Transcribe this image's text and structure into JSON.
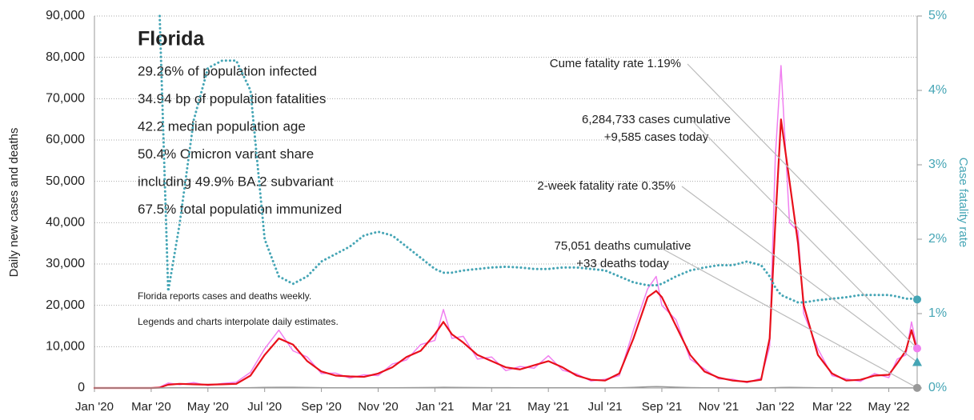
{
  "chart_data": {
    "type": "line",
    "title": "Florida",
    "info_lines": [
      "29.26% of population infected",
      "34.94 bp of population fatalities",
      "42.2 median population age",
      "50.4% Omicron variant share",
      "including 49.9% BA.2 subvariant",
      "67.5% total population immunized"
    ],
    "notes": [
      "Florida reports cases and deaths weekly.",
      "Legends and charts interpolate daily estimates."
    ],
    "y_label": "Daily new cases and deaths",
    "y2_label": "Case fatality rate",
    "x": [
      0,
      1,
      2,
      2.3,
      2.6,
      3,
      3.5,
      4,
      4.5,
      5,
      5.5,
      6,
      6.5,
      7,
      7.5,
      8,
      8.5,
      9,
      9.5,
      10,
      10.5,
      11,
      11.5,
      12,
      12.3,
      12.6,
      13,
      13.5,
      14,
      14.5,
      15,
      15.5,
      16,
      16.5,
      17,
      17.5,
      18,
      18.5,
      19,
      19.5,
      19.8,
      20,
      20.5,
      21,
      21.5,
      22,
      22.5,
      23,
      23.5,
      23.8,
      24,
      24.2,
      24.5,
      24.8,
      25,
      25.5,
      26,
      26.5,
      27,
      27.5,
      28,
      28.3,
      28.6,
      28.8,
      29
    ],
    "series": [
      {
        "color": "#f07ff0",
        "width": 1.5,
        "values": [
          0,
          0,
          0,
          200,
          1200,
          800,
          1300,
          600,
          1100,
          1400,
          3800,
          9500,
          14000,
          9000,
          7500,
          3500,
          3600,
          2400,
          3200,
          3000,
          5800,
          6800,
          10500,
          11500,
          19000,
          12000,
          12500,
          7000,
          7500,
          4200,
          5200,
          4800,
          7800,
          4300,
          3400,
          1700,
          2100,
          3000,
          14000,
          24000,
          27000,
          20000,
          16500,
          7000,
          4600,
          2200,
          2100,
          1300,
          2400,
          10000,
          56000,
          78000,
          40000,
          38000,
          18000,
          9500,
          3000,
          2200,
          1600,
          3500,
          2500,
          7000,
          8000,
          16000,
          9585
        ]
      },
      {
        "color": "#e8101a",
        "width": 2.2,
        "values": [
          0,
          0,
          0,
          100,
          800,
          1000,
          900,
          800,
          900,
          1000,
          3000,
          8000,
          12000,
          10500,
          6500,
          4000,
          3000,
          2800,
          2700,
          3500,
          5000,
          7500,
          9000,
          13000,
          16000,
          13000,
          11000,
          8000,
          6500,
          5000,
          4500,
          5500,
          6500,
          5000,
          3000,
          2000,
          1800,
          3500,
          12000,
          22000,
          23500,
          22000,
          15000,
          8000,
          4000,
          2500,
          1800,
          1500,
          2000,
          12000,
          40000,
          65000,
          50000,
          35000,
          20000,
          8000,
          3500,
          1800,
          2000,
          3000,
          3200,
          6000,
          9000,
          14000,
          9000
        ]
      },
      {
        "color": "#999999",
        "width": 1.5,
        "values": [
          0,
          0,
          0,
          10,
          50,
          60,
          50,
          40,
          40,
          50,
          80,
          150,
          180,
          160,
          120,
          80,
          60,
          50,
          50,
          50,
          60,
          80,
          100,
          130,
          170,
          150,
          130,
          100,
          80,
          70,
          60,
          60,
          60,
          50,
          40,
          30,
          30,
          50,
          150,
          300,
          350,
          320,
          200,
          100,
          60,
          40,
          30,
          25,
          30,
          40,
          80,
          120,
          150,
          130,
          100,
          60,
          40,
          25,
          20,
          15,
          15,
          20,
          25,
          30,
          33
        ]
      },
      {
        "color": "#45a5b5",
        "width": 3,
        "dotted": true,
        "axis": "y2",
        "values": [
          null,
          null,
          null,
          5,
          1.3,
          2.2,
          3.6,
          4.3,
          4.4,
          4.4,
          4.0,
          2.0,
          1.5,
          1.4,
          1.5,
          1.7,
          1.8,
          1.9,
          2.05,
          2.1,
          2.05,
          1.9,
          1.75,
          1.6,
          1.55,
          1.55,
          1.58,
          1.6,
          1.62,
          1.63,
          1.62,
          1.6,
          1.6,
          1.62,
          1.62,
          1.6,
          1.58,
          1.5,
          1.42,
          1.38,
          1.38,
          1.4,
          1.5,
          1.58,
          1.62,
          1.65,
          1.65,
          1.7,
          1.65,
          1.5,
          1.35,
          1.25,
          1.2,
          1.15,
          1.15,
          1.18,
          1.2,
          1.22,
          1.25,
          1.25,
          1.25,
          1.23,
          1.2,
          1.2,
          1.19
        ]
      }
    ],
    "xlim": [
      0,
      29
    ],
    "xticks": [
      {
        "value": 0,
        "label": "Jan '20"
      },
      {
        "value": 2,
        "label": "Mar '20"
      },
      {
        "value": 4,
        "label": "May '20"
      },
      {
        "value": 6,
        "label": "Jul '20"
      },
      {
        "value": 8,
        "label": "Sep '20"
      },
      {
        "value": 10,
        "label": "Nov '20"
      },
      {
        "value": 12,
        "label": "Jan '21"
      },
      {
        "value": 14,
        "label": "Mar '21"
      },
      {
        "value": 16,
        "label": "May '21"
      },
      {
        "value": 18,
        "label": "Jul '21"
      },
      {
        "value": 20,
        "label": "Sep '21"
      },
      {
        "value": 22,
        "label": "Nov '21"
      },
      {
        "value": 24,
        "label": "Jan '22"
      },
      {
        "value": 26,
        "label": "Mar '22"
      },
      {
        "value": 28,
        "label": "May '22"
      }
    ],
    "ylim": [
      0,
      90000
    ],
    "yticks": [
      0,
      {
        "value": 10000,
        "label": "10,000"
      },
      {
        "value": 20000,
        "label": "20,000"
      },
      {
        "value": 30000,
        "label": "30,000"
      },
      {
        "value": 40000,
        "label": "40,000"
      },
      {
        "value": 50000,
        "label": "50,000"
      },
      {
        "value": 60000,
        "label": "60,000"
      },
      {
        "value": 70000,
        "label": "70,000"
      },
      {
        "value": 80000,
        "label": "80,000"
      },
      {
        "value": 90000,
        "label": "90,000"
      }
    ],
    "y2lim": [
      0,
      5
    ],
    "y2ticks": [
      {
        "value": 0,
        "label": "0%"
      },
      {
        "value": 1,
        "label": "1%"
      },
      {
        "value": 2,
        "label": "2%"
      },
      {
        "value": 3,
        "label": "3%"
      },
      {
        "value": 4,
        "label": "4%"
      },
      {
        "value": 5,
        "label": "5%"
      }
    ],
    "grid": true,
    "annotations": [
      {
        "lines": [
          "Cume fatality rate 1.19%"
        ],
        "value": 1.19,
        "axis": "y2",
        "marker": "circle",
        "color": "#45a5b5"
      },
      {
        "lines": [
          "6,284,733 cases cumulative",
          "+9,585 cases today"
        ],
        "value": 9585,
        "axis": "y",
        "marker": "circle",
        "color": "#f07ff0"
      },
      {
        "lines": [
          "2-week fatality rate 0.35%"
        ],
        "value": 0.35,
        "axis": "y2",
        "marker": "triangle",
        "color": "#45a5b5"
      },
      {
        "lines": [
          "75,051 deaths cumulative",
          "+33 deaths today"
        ],
        "value": 33,
        "axis": "y",
        "marker": "circle",
        "color": "#999999"
      }
    ]
  }
}
